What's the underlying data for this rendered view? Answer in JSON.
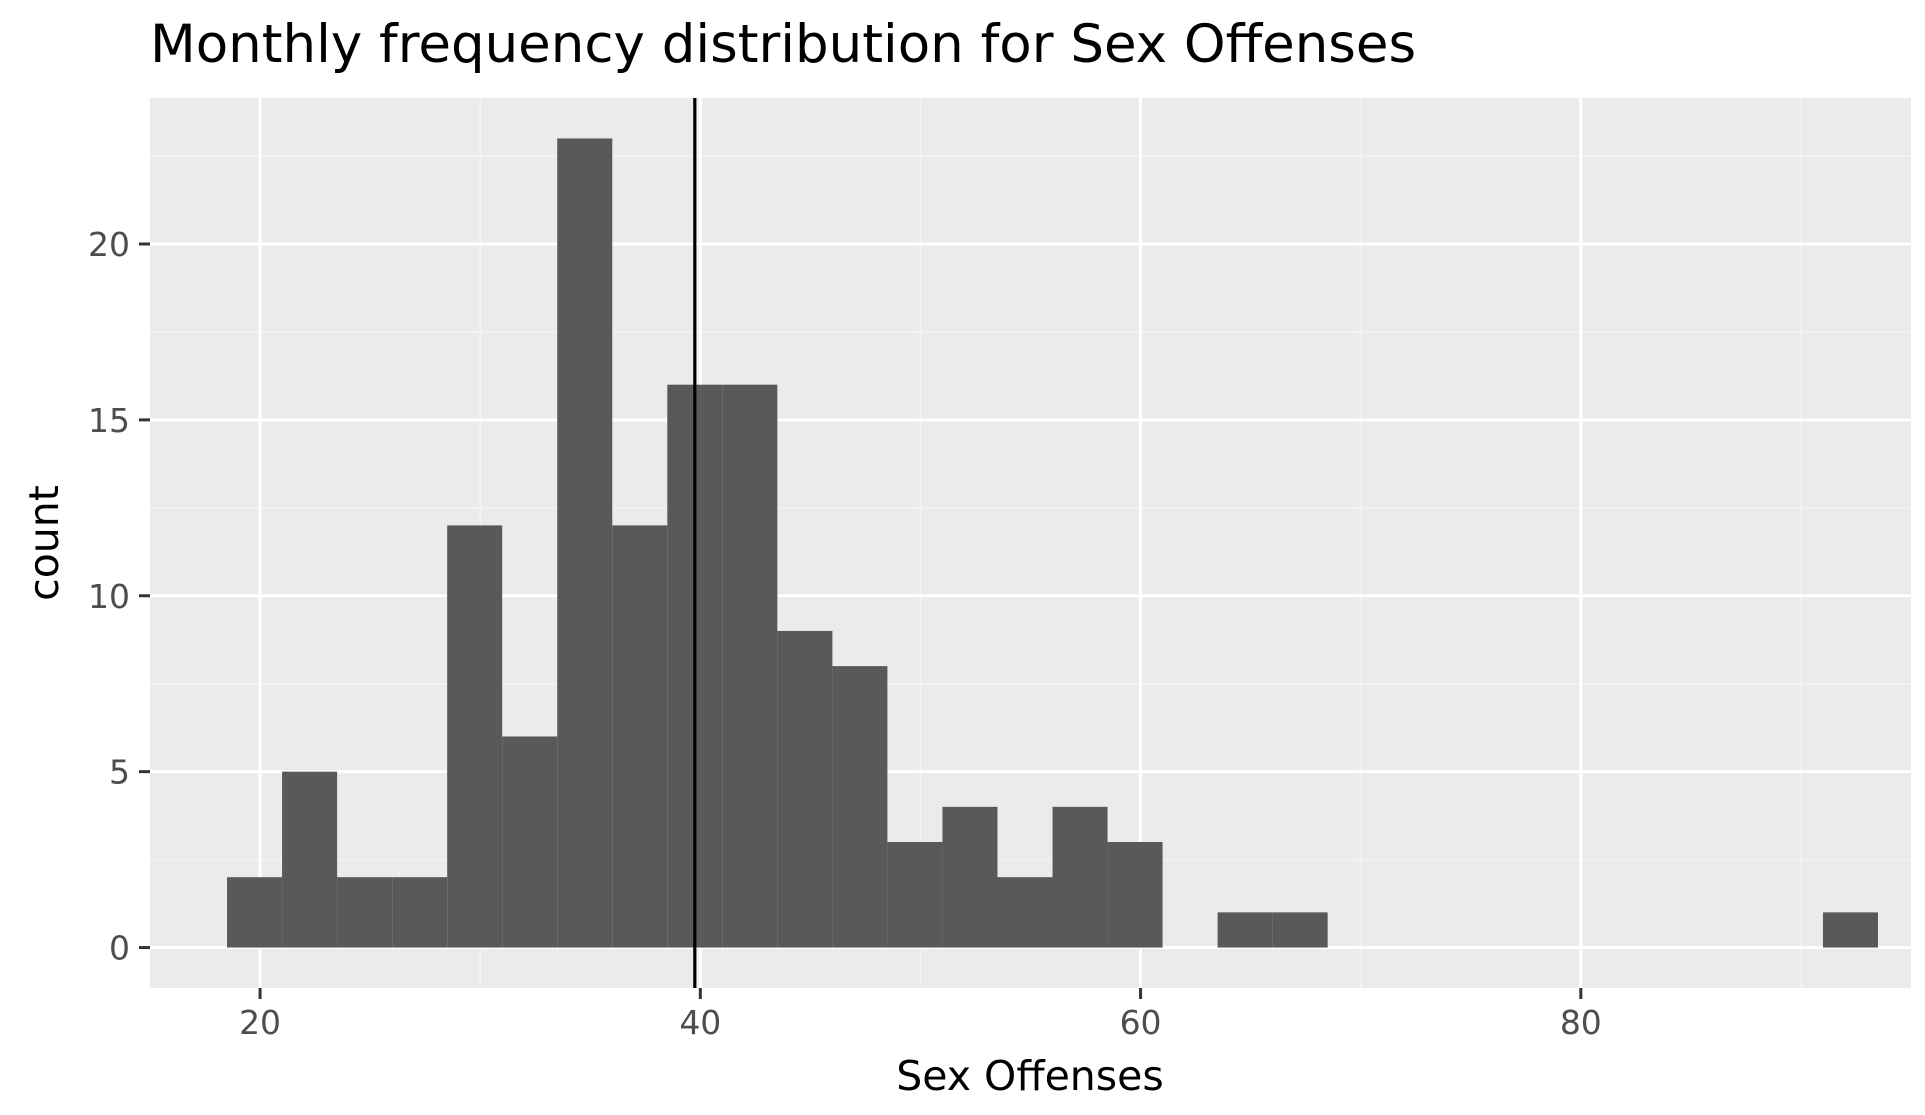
{
  "chart_data": {
    "type": "bar",
    "title": "Monthly frequency distribution for Sex Offenses",
    "xlabel": "Sex Offenses",
    "ylabel": "count",
    "xlim": [
      15.0,
      95.0
    ],
    "ylim": [
      -1.15,
      24.15
    ],
    "x_ticks": [
      20,
      40,
      60,
      80
    ],
    "y_ticks": [
      0,
      5,
      10,
      15,
      20
    ],
    "bin_width": 2.5,
    "bin_starts": [
      18.5,
      21.0,
      23.5,
      26.0,
      28.5,
      31.0,
      33.5,
      36.0,
      38.5,
      41.0,
      43.5,
      46.0,
      48.5,
      51.0,
      53.5,
      56.0,
      58.5,
      61.0,
      63.5,
      66.0,
      68.5,
      71.0,
      73.5,
      76.0,
      78.5,
      81.0,
      83.5,
      86.0,
      88.5,
      91.0
    ],
    "values": [
      2,
      5,
      2,
      2,
      12,
      6,
      23,
      12,
      16,
      16,
      9,
      8,
      3,
      4,
      2,
      4,
      3,
      0,
      1,
      1,
      0,
      0,
      0,
      0,
      0,
      0,
      0,
      0,
      0,
      1
    ],
    "reference_line_x": 39.75,
    "grid": true,
    "colors": {
      "panel_background": "#ebebeb",
      "grid_major": "#ffffff",
      "grid_minor": "#f4f4f4",
      "bar_fill": "#595959",
      "reference_line": "#000000"
    }
  }
}
